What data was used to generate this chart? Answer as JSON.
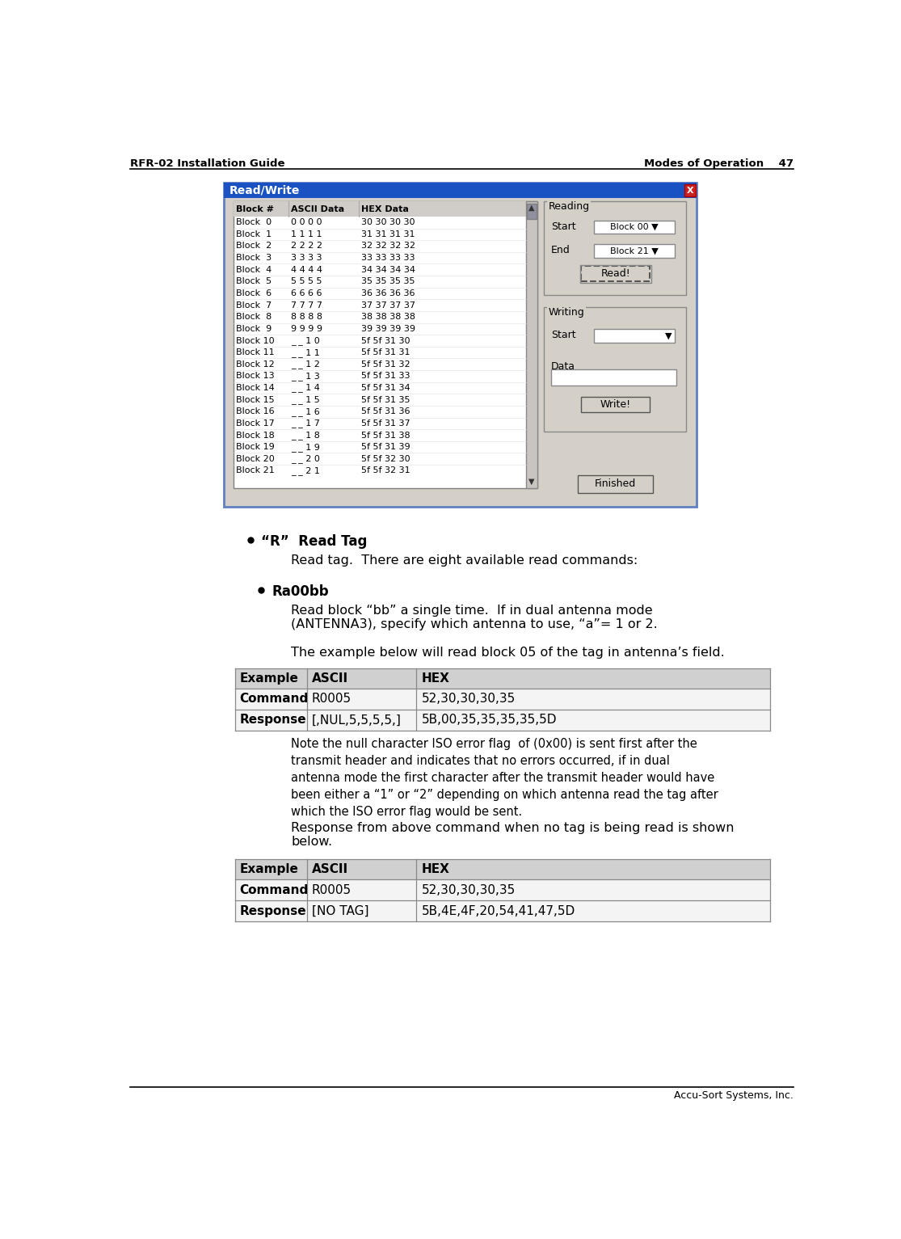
{
  "page_title_left": "RFR-02 Installation Guide",
  "page_title_right": "Modes of Operation",
  "page_number": "47",
  "footer_text": "Accu-Sort Systems, Inc.",
  "screenshot_title": "Read/Write",
  "screenshot_blocks": [
    [
      "Block  0",
      "0 0 0 0",
      "30 30 30 30"
    ],
    [
      "Block  1",
      "1 1 1 1",
      "31 31 31 31"
    ],
    [
      "Block  2",
      "2 2 2 2",
      "32 32 32 32"
    ],
    [
      "Block  3",
      "3 3 3 3",
      "33 33 33 33"
    ],
    [
      "Block  4",
      "4 4 4 4",
      "34 34 34 34"
    ],
    [
      "Block  5",
      "5 5 5 5",
      "35 35 35 35"
    ],
    [
      "Block  6",
      "6 6 6 6",
      "36 36 36 36"
    ],
    [
      "Block  7",
      "7 7 7 7",
      "37 37 37 37"
    ],
    [
      "Block  8",
      "8 8 8 8",
      "38 38 38 38"
    ],
    [
      "Block  9",
      "9 9 9 9",
      "39 39 39 39"
    ],
    [
      "Block 10",
      "_ _ 1 0",
      "5f 5f 31 30"
    ],
    [
      "Block 11",
      "_ _ 1 1",
      "5f 5f 31 31"
    ],
    [
      "Block 12",
      "_ _ 1 2",
      "5f 5f 31 32"
    ],
    [
      "Block 13",
      "_ _ 1 3",
      "5f 5f 31 33"
    ],
    [
      "Block 14",
      "_ _ 1 4",
      "5f 5f 31 34"
    ],
    [
      "Block 15",
      "_ _ 1 5",
      "5f 5f 31 35"
    ],
    [
      "Block 16",
      "_ _ 1 6",
      "5f 5f 31 36"
    ],
    [
      "Block 17",
      "_ _ 1 7",
      "5f 5f 31 37"
    ],
    [
      "Block 18",
      "_ _ 1 8",
      "5f 5f 31 38"
    ],
    [
      "Block 19",
      "_ _ 1 9",
      "5f 5f 31 39"
    ],
    [
      "Block 20",
      "_ _ 2 0",
      "5f 5f 32 30"
    ],
    [
      "Block 21",
      "_ _ 2 1",
      "5f 5f 32 31"
    ]
  ],
  "bullet1_label": "“R”  Read Tag",
  "bullet1_text": "Read tag.  There are eight available read commands:",
  "bullet2_label": "Ra00bb",
  "bullet2_text": "Read block “bb” a single time.  If in dual antenna mode\n(ANTENNA3), specify which antenna to use, “a”= 1 or 2.",
  "example_intro": "The example below will read block 05 of the tag in antenna’s field.",
  "table1_headers": [
    "Example",
    "ASCII",
    "HEX"
  ],
  "table1_rows": [
    [
      "Command",
      "R0005",
      "52,30,30,30,35"
    ],
    [
      "Response",
      "[,NUL,5,5,5,5,]",
      "5B,00,35,35,35,35,5D"
    ]
  ],
  "note_text": "Note the null character ISO error flag  of (0x00) is sent first after the\ntransmit header and indicates that no errors occurred, if in dual\nantenna mode the first character after the transmit header would have\nbeen either a “1” or “2” depending on which antenna read the tag after\nwhich the ISO error flag would be sent.",
  "example2_intro": "Response from above command when no tag is being read is shown\nbelow.",
  "table2_headers": [
    "Example",
    "ASCII",
    "HEX"
  ],
  "table2_rows": [
    [
      "Command",
      "R0005",
      "52,30,30,30,35"
    ],
    [
      "Response",
      "[NO TAG]",
      "5B,4E,4F,20,54,41,47,5D"
    ]
  ],
  "bg_color": "#ffffff",
  "win_title_bg": "#1a52c4",
  "win_bg": "#d4d0c8",
  "list_bg": "#ffffff",
  "close_btn_color": "#cc2222"
}
